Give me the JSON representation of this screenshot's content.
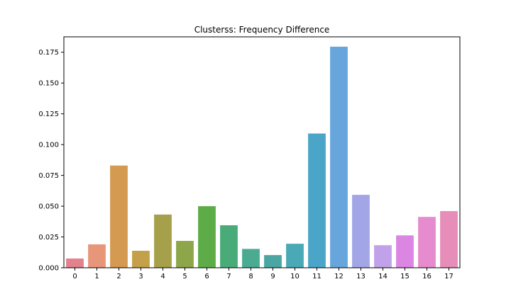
{
  "chart_data": {
    "type": "bar",
    "title": "Clusterss: Frequency Difference",
    "xlabel": "",
    "ylabel": "",
    "categories": [
      "0",
      "1",
      "2",
      "3",
      "4",
      "5",
      "6",
      "7",
      "8",
      "9",
      "10",
      "11",
      "12",
      "13",
      "14",
      "15",
      "16",
      "17"
    ],
    "values": [
      0.0075,
      0.019,
      0.083,
      0.0138,
      0.0432,
      0.0218,
      0.05,
      0.0345,
      0.0153,
      0.0103,
      0.0195,
      0.109,
      0.1795,
      0.0592,
      0.0183,
      0.0263,
      0.0413,
      0.046
    ],
    "colors": [
      "#e1828c",
      "#e8967a",
      "#d49a52",
      "#c4a04a",
      "#a6a04a",
      "#8ca649",
      "#5eac47",
      "#49ac78",
      "#4aaa92",
      "#4ba6a3",
      "#4aa9b6",
      "#4ba5c8",
      "#67a6dc",
      "#a3a6e6",
      "#c1a2ea",
      "#db86e3",
      "#e58bce",
      "#e68dba"
    ],
    "ylim": [
      0,
      0.1875
    ],
    "yticks": [
      "0.000",
      "0.025",
      "0.050",
      "0.075",
      "0.100",
      "0.125",
      "0.150",
      "0.175"
    ],
    "grid": false
  }
}
